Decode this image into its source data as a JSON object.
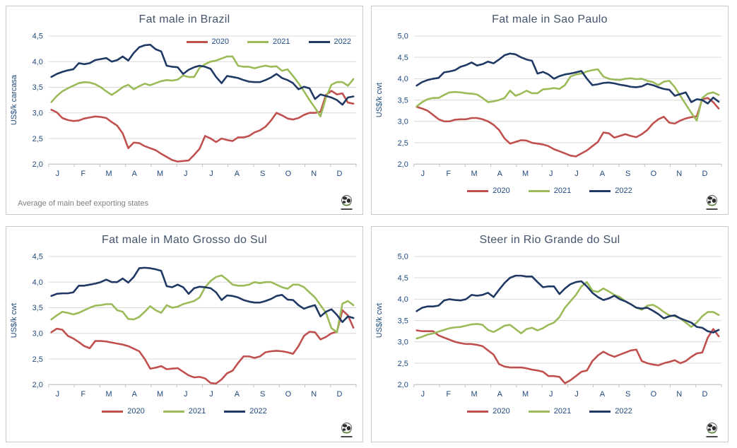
{
  "colors": {
    "series_2020": "#C0504D",
    "series_2021": "#9BBB59",
    "series_2022": "#1F3864",
    "gridline": "#D9D9D9",
    "axis_line": "#BFBFBF",
    "axis_text": "#1F497D",
    "title_text": "#44546A",
    "footnote_text": "#7F7F7F",
    "panel_border": "#C9C9C9"
  },
  "chart_data": [
    {
      "type": "line",
      "title": "Fat male in Brazil",
      "ylabel": "US$/k carcasa",
      "ylim": [
        2.0,
        4.5
      ],
      "y_ticks": [
        "2,0",
        "2,5",
        "3,0",
        "3,5",
        "4,0",
        "4,5"
      ],
      "x_tick_labels": [
        "J",
        "F",
        "M",
        "A",
        "M",
        "J",
        "J",
        "A",
        "S",
        "O",
        "N",
        "D"
      ],
      "x_unit": "weeks",
      "grid": "horizontal",
      "legend_position": "inside-top-right",
      "footnote": "Average  of main beef exporting states",
      "series": [
        {
          "name": "2020",
          "color": "#C0504D",
          "values": [
            3.06,
            3.01,
            2.9,
            2.86,
            2.84,
            2.85,
            2.89,
            2.91,
            2.93,
            2.92,
            2.9,
            2.82,
            2.75,
            2.6,
            2.31,
            2.42,
            2.41,
            2.35,
            2.31,
            2.27,
            2.2,
            2.14,
            2.08,
            2.05,
            2.06,
            2.07,
            2.18,
            2.3,
            2.55,
            2.5,
            2.43,
            2.5,
            2.47,
            2.45,
            2.52,
            2.52,
            2.55,
            2.62,
            2.66,
            2.73,
            2.85,
            3.0,
            2.95,
            2.89,
            2.87,
            2.9,
            2.96,
            3.0,
            3.0,
            3.02,
            3.35,
            3.43,
            3.36,
            3.38,
            3.2,
            3.18
          ]
        },
        {
          "name": "2021",
          "color": "#9BBB59",
          "values": [
            3.21,
            3.33,
            3.42,
            3.48,
            3.53,
            3.58,
            3.6,
            3.59,
            3.56,
            3.5,
            3.42,
            3.35,
            3.42,
            3.5,
            3.55,
            3.46,
            3.52,
            3.57,
            3.54,
            3.58,
            3.62,
            3.64,
            3.63,
            3.65,
            3.73,
            3.7,
            3.7,
            3.88,
            3.95,
            4.0,
            4.02,
            4.06,
            4.1,
            4.1,
            3.92,
            3.9,
            3.9,
            3.87,
            3.9,
            3.92,
            3.9,
            3.91,
            3.82,
            3.85,
            3.72,
            3.58,
            3.42,
            3.25,
            3.1,
            2.93,
            3.3,
            3.55,
            3.6,
            3.6,
            3.53,
            3.66
          ]
        },
        {
          "name": "2022",
          "color": "#1F3864",
          "values": [
            3.7,
            3.76,
            3.8,
            3.83,
            3.85,
            3.97,
            3.95,
            3.97,
            4.03,
            4.05,
            4.07,
            4.0,
            4.03,
            4.1,
            4.02,
            4.17,
            4.28,
            4.32,
            4.33,
            4.24,
            4.2,
            3.92,
            3.9,
            3.89,
            3.76,
            3.84,
            3.89,
            3.92,
            3.9,
            3.86,
            3.7,
            3.58,
            3.72,
            3.7,
            3.68,
            3.64,
            3.61,
            3.6,
            3.6,
            3.64,
            3.69,
            3.76,
            3.68,
            3.64,
            3.58,
            3.46,
            3.51,
            3.48,
            3.27,
            3.36,
            3.33,
            3.3,
            3.25,
            3.16,
            3.3,
            3.32
          ]
        }
      ]
    },
    {
      "type": "line",
      "title": "Fat male in Sao Paulo",
      "ylabel": "US$/k cwt",
      "ylim": [
        2.0,
        5.0
      ],
      "y_ticks": [
        "2,0",
        "2,5",
        "3,0",
        "3,5",
        "4,0",
        "4,5",
        "5,0"
      ],
      "x_tick_labels": [
        "J",
        "F",
        "M",
        "A",
        "M",
        "J",
        "J",
        "A",
        "S",
        "O",
        "N",
        "D"
      ],
      "x_unit": "weeks",
      "grid": "horizontal",
      "legend_position": "bottom",
      "footnote": "",
      "series": [
        {
          "name": "2020",
          "color": "#C0504D",
          "values": [
            3.34,
            3.3,
            3.25,
            3.15,
            3.05,
            3.0,
            3.0,
            3.04,
            3.05,
            3.05,
            3.08,
            3.08,
            3.05,
            3.0,
            2.92,
            2.8,
            2.6,
            2.48,
            2.52,
            2.56,
            2.55,
            2.5,
            2.48,
            2.46,
            2.42,
            2.35,
            2.3,
            2.25,
            2.2,
            2.18,
            2.25,
            2.32,
            2.42,
            2.52,
            2.74,
            2.72,
            2.62,
            2.66,
            2.7,
            2.66,
            2.63,
            2.7,
            2.8,
            2.95,
            3.05,
            3.11,
            2.97,
            2.95,
            3.02,
            3.07,
            3.1,
            3.12,
            3.52,
            3.55,
            3.45,
            3.3
          ]
        },
        {
          "name": "2021",
          "color": "#9BBB59",
          "values": [
            3.35,
            3.45,
            3.52,
            3.55,
            3.55,
            3.62,
            3.68,
            3.69,
            3.68,
            3.66,
            3.65,
            3.63,
            3.55,
            3.45,
            3.47,
            3.5,
            3.55,
            3.72,
            3.6,
            3.65,
            3.72,
            3.66,
            3.66,
            3.75,
            3.76,
            3.78,
            3.76,
            3.85,
            4.05,
            4.1,
            4.12,
            4.17,
            4.2,
            4.22,
            4.05,
            4.0,
            3.98,
            3.97,
            4.0,
            4.01,
            3.99,
            4.0,
            3.95,
            3.92,
            3.85,
            3.93,
            3.95,
            3.8,
            3.6,
            3.4,
            3.2,
            3.02,
            3.55,
            3.65,
            3.68,
            3.62
          ]
        },
        {
          "name": "2022",
          "color": "#1F3864",
          "values": [
            3.84,
            3.92,
            3.97,
            4.0,
            4.02,
            4.15,
            4.17,
            4.2,
            4.28,
            4.32,
            4.38,
            4.31,
            4.34,
            4.4,
            4.36,
            4.45,
            4.55,
            4.59,
            4.57,
            4.5,
            4.45,
            4.42,
            4.12,
            4.16,
            4.1,
            4.0,
            4.06,
            4.1,
            4.12,
            4.15,
            4.18,
            4.0,
            3.85,
            3.87,
            3.9,
            3.91,
            3.89,
            3.86,
            3.84,
            3.81,
            3.8,
            3.82,
            3.88,
            3.85,
            3.8,
            3.76,
            3.74,
            3.6,
            3.64,
            3.68,
            3.45,
            3.52,
            3.5,
            3.42,
            3.56,
            3.46
          ]
        }
      ]
    },
    {
      "type": "line",
      "title": "Fat male in Mato Grosso do Sul",
      "ylabel": "US$/k cwt",
      "ylim": [
        2.0,
        4.5
      ],
      "y_ticks": [
        "2,0",
        "2,5",
        "3,0",
        "3,5",
        "4,0",
        "4,5"
      ],
      "x_tick_labels": [
        "J",
        "F",
        "M",
        "A",
        "M",
        "J",
        "J",
        "A",
        "S",
        "O",
        "N",
        "D"
      ],
      "x_unit": "weeks",
      "grid": "horizontal",
      "legend_position": "bottom",
      "footnote": "",
      "series": [
        {
          "name": "2020",
          "color": "#C0504D",
          "values": [
            3.02,
            3.09,
            3.07,
            2.95,
            2.9,
            2.83,
            2.75,
            2.71,
            2.85,
            2.85,
            2.84,
            2.82,
            2.8,
            2.78,
            2.75,
            2.7,
            2.65,
            2.5,
            2.31,
            2.33,
            2.36,
            2.3,
            2.31,
            2.32,
            2.25,
            2.18,
            2.14,
            2.15,
            2.12,
            2.03,
            2.02,
            2.1,
            2.22,
            2.27,
            2.42,
            2.55,
            2.55,
            2.52,
            2.55,
            2.63,
            2.65,
            2.66,
            2.65,
            2.63,
            2.6,
            2.75,
            2.95,
            3.03,
            3.02,
            2.88,
            2.93,
            3.0,
            3.03,
            3.45,
            3.35,
            3.11
          ]
        },
        {
          "name": "2021",
          "color": "#9BBB59",
          "values": [
            3.27,
            3.35,
            3.42,
            3.4,
            3.37,
            3.4,
            3.45,
            3.5,
            3.54,
            3.55,
            3.57,
            3.57,
            3.45,
            3.42,
            3.28,
            3.27,
            3.32,
            3.42,
            3.53,
            3.45,
            3.4,
            3.55,
            3.5,
            3.52,
            3.57,
            3.6,
            3.63,
            3.7,
            3.9,
            4.02,
            4.1,
            4.13,
            4.05,
            3.95,
            3.93,
            3.93,
            3.95,
            4.0,
            3.98,
            4.0,
            4.0,
            3.95,
            3.9,
            3.87,
            3.95,
            3.95,
            3.9,
            3.8,
            3.7,
            3.55,
            3.4,
            3.1,
            3.02,
            3.58,
            3.63,
            3.55
          ]
        },
        {
          "name": "2022",
          "color": "#1F3864",
          "values": [
            3.73,
            3.77,
            3.78,
            3.78,
            3.8,
            3.93,
            3.93,
            3.95,
            3.97,
            4.0,
            4.05,
            4.0,
            4.0,
            4.07,
            3.99,
            4.1,
            4.27,
            4.28,
            4.27,
            4.25,
            4.22,
            3.92,
            3.9,
            3.95,
            3.9,
            3.77,
            3.88,
            3.91,
            3.9,
            3.88,
            3.8,
            3.65,
            3.74,
            3.73,
            3.7,
            3.65,
            3.62,
            3.6,
            3.6,
            3.63,
            3.67,
            3.73,
            3.75,
            3.66,
            3.65,
            3.55,
            3.48,
            3.52,
            3.55,
            3.33,
            3.42,
            3.47,
            3.36,
            3.22,
            3.33,
            3.3
          ]
        }
      ]
    },
    {
      "type": "line",
      "title": "Steer  in Rio Grande do Sul",
      "ylabel": "US$/k cwt",
      "ylim": [
        2.0,
        5.0
      ],
      "y_ticks": [
        "2,0",
        "2,5",
        "3,0",
        "3,5",
        "4,0",
        "4,5",
        "5,0"
      ],
      "x_tick_labels": [
        "J",
        "F",
        "M",
        "A",
        "M",
        "J",
        "J",
        "A",
        "S",
        "O",
        "N",
        "D"
      ],
      "x_unit": "weeks",
      "grid": "horizontal",
      "legend_position": "bottom",
      "footnote": "",
      "series": [
        {
          "name": "2020",
          "color": "#C0504D",
          "values": [
            3.27,
            3.25,
            3.25,
            3.25,
            3.15,
            3.1,
            3.05,
            3.0,
            2.97,
            2.95,
            2.95,
            2.93,
            2.9,
            2.8,
            2.7,
            2.48,
            2.42,
            2.4,
            2.4,
            2.4,
            2.38,
            2.35,
            2.33,
            2.3,
            2.2,
            2.2,
            2.18,
            2.03,
            2.1,
            2.2,
            2.3,
            2.33,
            2.55,
            2.68,
            2.77,
            2.7,
            2.65,
            2.7,
            2.75,
            2.8,
            2.82,
            2.55,
            2.5,
            2.47,
            2.45,
            2.5,
            2.53,
            2.57,
            2.5,
            2.55,
            2.65,
            2.73,
            2.75,
            3.1,
            3.3,
            3.13
          ]
        },
        {
          "name": "2021",
          "color": "#9BBB59",
          "values": [
            3.08,
            3.12,
            3.17,
            3.2,
            3.24,
            3.28,
            3.32,
            3.34,
            3.35,
            3.38,
            3.41,
            3.42,
            3.4,
            3.28,
            3.23,
            3.3,
            3.38,
            3.4,
            3.3,
            3.2,
            3.3,
            3.33,
            3.27,
            3.32,
            3.4,
            3.45,
            3.58,
            3.8,
            3.95,
            4.1,
            4.3,
            4.4,
            4.2,
            4.17,
            4.25,
            4.18,
            4.1,
            4.05,
            3.95,
            3.88,
            3.8,
            3.75,
            3.85,
            3.87,
            3.8,
            3.7,
            3.62,
            3.6,
            3.55,
            3.45,
            3.35,
            3.45,
            3.6,
            3.7,
            3.7,
            3.63
          ]
        },
        {
          "name": "2022",
          "color": "#1F3864",
          "values": [
            3.72,
            3.8,
            3.83,
            3.83,
            3.85,
            3.97,
            4.0,
            3.98,
            3.97,
            4.0,
            4.1,
            4.08,
            4.1,
            4.15,
            4.05,
            4.22,
            4.38,
            4.5,
            4.55,
            4.55,
            4.53,
            4.53,
            4.4,
            4.28,
            4.3,
            4.3,
            4.12,
            4.25,
            4.35,
            4.4,
            4.42,
            4.3,
            4.15,
            4.05,
            3.98,
            4.02,
            4.08,
            4.0,
            3.95,
            3.88,
            3.8,
            3.78,
            3.8,
            3.73,
            3.65,
            3.55,
            3.6,
            3.62,
            3.55,
            3.5,
            3.45,
            3.35,
            3.33,
            3.25,
            3.22,
            3.28
          ]
        }
      ]
    }
  ]
}
